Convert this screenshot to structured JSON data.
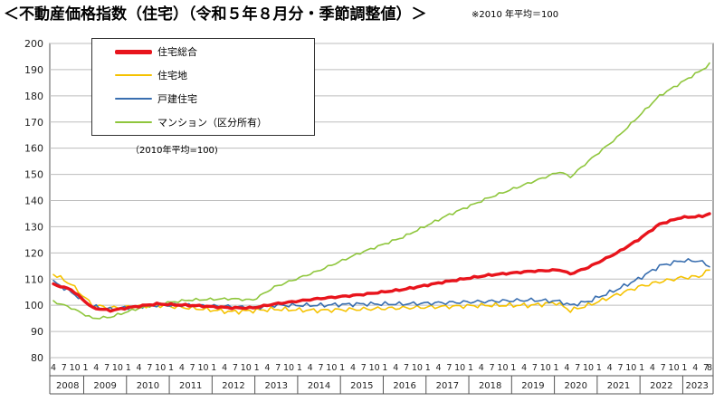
{
  "header": {
    "title": "＜不動産価格指数（住宅）（令和５年８月分・季節調整値）＞",
    "note": "※2010 年平均＝100"
  },
  "chart_data": {
    "type": "line",
    "title": "不動産価格指数（住宅）（令和５年８月分・季節調整値）",
    "base_note": "（2010年平均=100)",
    "ylim": [
      80,
      200
    ],
    "yticks": [
      80,
      90,
      100,
      110,
      120,
      130,
      140,
      150,
      160,
      170,
      180,
      190,
      200
    ],
    "x_start": "2008-04",
    "x_end": "2023-08",
    "years": [
      "2008",
      "2009",
      "2010",
      "2011",
      "2012",
      "2013",
      "2014",
      "2015",
      "2016",
      "2017",
      "2018",
      "2019",
      "2020",
      "2021",
      "2022",
      "2023"
    ],
    "month_ticks_full": [
      "1",
      "4",
      "7",
      "10"
    ],
    "month_ticks_2008": [
      "4",
      "7",
      "10"
    ],
    "month_ticks_2023": [
      "1",
      "4",
      "7",
      "8"
    ],
    "grid": "horizontal",
    "legend_position": "top-left",
    "series": [
      {
        "name": "住宅総合",
        "color": "#e8141c",
        "knots": [
          [
            "2008-04",
            108
          ],
          [
            "2008-09",
            106
          ],
          [
            "2009-03",
            99
          ],
          [
            "2009-08",
            98
          ],
          [
            "2010-03",
            99.5
          ],
          [
            "2010-09",
            100.5
          ],
          [
            "2011-06",
            100
          ],
          [
            "2012-06",
            99
          ],
          [
            "2012-12",
            99
          ],
          [
            "2013-06",
            100.5
          ],
          [
            "2014-06",
            102.5
          ],
          [
            "2015-06",
            104
          ],
          [
            "2016-06",
            106
          ],
          [
            "2017-06",
            109
          ],
          [
            "2018-06",
            111.5
          ],
          [
            "2019-06",
            113
          ],
          [
            "2020-02",
            113.5
          ],
          [
            "2020-05",
            112
          ],
          [
            "2020-10",
            114.5
          ],
          [
            "2021-06",
            120
          ],
          [
            "2021-12",
            125
          ],
          [
            "2022-06",
            131
          ],
          [
            "2022-12",
            133.5
          ],
          [
            "2023-06",
            134
          ],
          [
            "2023-08",
            135
          ]
        ]
      },
      {
        "name": "住宅地",
        "color": "#f5c200",
        "knots": [
          [
            "2008-04",
            112
          ],
          [
            "2008-09",
            108
          ],
          [
            "2009-03",
            100
          ],
          [
            "2009-08",
            99
          ],
          [
            "2010-03",
            99.5
          ],
          [
            "2010-09",
            100
          ],
          [
            "2011-06",
            99
          ],
          [
            "2012-06",
            97.5
          ],
          [
            "2012-12",
            98
          ],
          [
            "2013-06",
            98.5
          ],
          [
            "2014-06",
            98
          ],
          [
            "2015-06",
            98.5
          ],
          [
            "2016-06",
            99
          ],
          [
            "2017-06",
            99.5
          ],
          [
            "2018-06",
            100
          ],
          [
            "2019-06",
            100
          ],
          [
            "2020-01",
            101
          ],
          [
            "2020-05",
            98
          ],
          [
            "2020-10",
            100
          ],
          [
            "2021-06",
            104
          ],
          [
            "2021-12",
            107
          ],
          [
            "2022-06",
            109
          ],
          [
            "2022-12",
            110.5
          ],
          [
            "2023-05",
            111
          ],
          [
            "2023-08",
            113.5
          ]
        ]
      },
      {
        "name": "戸建住宅",
        "color": "#3a6fb0",
        "knots": [
          [
            "2008-04",
            109
          ],
          [
            "2008-09",
            105
          ],
          [
            "2009-03",
            99.5
          ],
          [
            "2009-08",
            98.5
          ],
          [
            "2010-03",
            99.5
          ],
          [
            "2010-09",
            100
          ],
          [
            "2011-06",
            100
          ],
          [
            "2012-06",
            99.5
          ],
          [
            "2012-12",
            99
          ],
          [
            "2013-06",
            100
          ],
          [
            "2014-06",
            100
          ],
          [
            "2015-06",
            100.5
          ],
          [
            "2016-06",
            100.5
          ],
          [
            "2017-06",
            101
          ],
          [
            "2018-06",
            101.5
          ],
          [
            "2019-06",
            102
          ],
          [
            "2020-02",
            101.5
          ],
          [
            "2020-05",
            100
          ],
          [
            "2020-10",
            101.5
          ],
          [
            "2021-06",
            106
          ],
          [
            "2021-12",
            110
          ],
          [
            "2022-06",
            115
          ],
          [
            "2022-12",
            117
          ],
          [
            "2023-05",
            117
          ],
          [
            "2023-08",
            115
          ]
        ]
      },
      {
        "name": "マンション（区分所有）",
        "color": "#8fc63d",
        "knots": [
          [
            "2008-04",
            101.5
          ],
          [
            "2008-09",
            99
          ],
          [
            "2009-03",
            95
          ],
          [
            "2009-08",
            95.5
          ],
          [
            "2010-03",
            98.5
          ],
          [
            "2010-09",
            100.5
          ],
          [
            "2011-06",
            102
          ],
          [
            "2012-06",
            102.5
          ],
          [
            "2012-12",
            102
          ],
          [
            "2013-06",
            107
          ],
          [
            "2014-06",
            113
          ],
          [
            "2015-06",
            120
          ],
          [
            "2016-06",
            126
          ],
          [
            "2017-06",
            134
          ],
          [
            "2018-06",
            141
          ],
          [
            "2019-06",
            147
          ],
          [
            "2020-02",
            151
          ],
          [
            "2020-05",
            149
          ],
          [
            "2020-10",
            155
          ],
          [
            "2021-06",
            164
          ],
          [
            "2021-12",
            172
          ],
          [
            "2022-06",
            180
          ],
          [
            "2022-12",
            185
          ],
          [
            "2023-06",
            190
          ],
          [
            "2023-08",
            192
          ]
        ]
      }
    ]
  }
}
